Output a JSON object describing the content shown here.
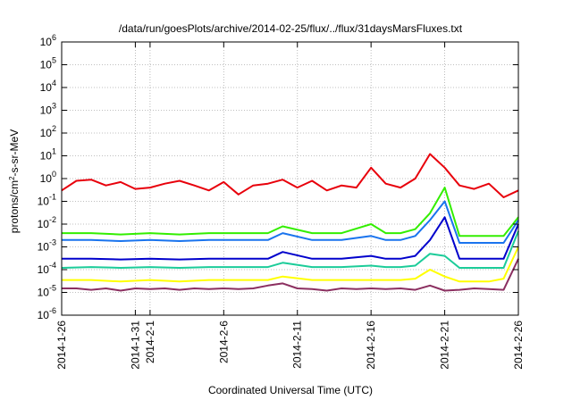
{
  "chart_data": {
    "type": "line",
    "title": "/data/run/goesPlots/archive/2014-02-25/flux/../flux/31daysMarsFluxes.txt",
    "xlabel": "Coordinated Universal Time (UTC)",
    "ylabel": "protons/cm2-s-sr-MeV",
    "ylabel_parts": {
      "pre": "protons/cm",
      "sup": "2",
      "post": "-s-sr-MeV"
    },
    "y_scale": "log",
    "ylim": [
      1e-06,
      1000000.0
    ],
    "y_ticks": [
      {
        "value": 1e-06,
        "base": "10",
        "exp": "-6"
      },
      {
        "value": 1e-05,
        "base": "10",
        "exp": "-5"
      },
      {
        "value": 0.0001,
        "base": "10",
        "exp": "-4"
      },
      {
        "value": 0.001,
        "base": "10",
        "exp": "-3"
      },
      {
        "value": 0.01,
        "base": "10",
        "exp": "-2"
      },
      {
        "value": 0.1,
        "base": "10",
        "exp": "-1"
      },
      {
        "value": 1.0,
        "base": "10",
        "exp": "0"
      },
      {
        "value": 10.0,
        "base": "10",
        "exp": "1"
      },
      {
        "value": 100.0,
        "base": "10",
        "exp": "2"
      },
      {
        "value": 1000.0,
        "base": "10",
        "exp": "3"
      },
      {
        "value": 10000.0,
        "base": "10",
        "exp": "4"
      },
      {
        "value": 100000.0,
        "base": "10",
        "exp": "5"
      },
      {
        "value": 1000000.0,
        "base": "10",
        "exp": "6"
      }
    ],
    "xlim": [
      "2014-01-26",
      "2014-02-26"
    ],
    "x_ticks": [
      {
        "value": "2014-01-26",
        "label": "2014-1-26"
      },
      {
        "value": "2014-01-31",
        "label": "2014-1-31"
      },
      {
        "value": "2014-02-01",
        "label": "2014-2-1"
      },
      {
        "value": "2014-02-06",
        "label": "2014-2-6"
      },
      {
        "value": "2014-02-11",
        "label": "2014-2-11"
      },
      {
        "value": "2014-02-16",
        "label": "2014-2-16"
      },
      {
        "value": "2014-02-21",
        "label": "2014-2-21"
      },
      {
        "value": "2014-02-26",
        "label": "2014-2-26"
      }
    ],
    "grid": true,
    "series": [
      {
        "color": "#e8000b",
        "x": [
          "2014-01-26",
          "2014-01-27",
          "2014-01-28",
          "2014-01-29",
          "2014-01-30",
          "2014-01-31",
          "2014-02-01",
          "2014-02-02",
          "2014-02-03",
          "2014-02-04",
          "2014-02-05",
          "2014-02-06",
          "2014-02-07",
          "2014-02-08",
          "2014-02-09",
          "2014-02-10",
          "2014-02-11",
          "2014-02-12",
          "2014-02-13",
          "2014-02-14",
          "2014-02-15",
          "2014-02-16",
          "2014-02-17",
          "2014-02-18",
          "2014-02-19",
          "2014-02-20",
          "2014-02-21",
          "2014-02-22",
          "2014-02-23",
          "2014-02-24",
          "2014-02-25",
          "2014-02-26"
        ],
        "values": [
          0.3,
          0.8,
          0.9,
          0.5,
          0.7,
          0.35,
          0.4,
          0.6,
          0.8,
          0.5,
          0.3,
          0.7,
          0.2,
          0.5,
          0.6,
          0.9,
          0.4,
          0.8,
          0.3,
          0.5,
          0.4,
          3.0,
          0.6,
          0.4,
          1.0,
          12.0,
          3.0,
          0.5,
          0.35,
          0.6,
          0.15,
          0.3
        ]
      },
      {
        "color": "#33ee00",
        "x": [
          "2014-01-26",
          "2014-01-28",
          "2014-01-30",
          "2014-02-01",
          "2014-02-03",
          "2014-02-05",
          "2014-02-07",
          "2014-02-09",
          "2014-02-10",
          "2014-02-12",
          "2014-02-14",
          "2014-02-16",
          "2014-02-17",
          "2014-02-18",
          "2014-02-19",
          "2014-02-20",
          "2014-02-21",
          "2014-02-22",
          "2014-02-23",
          "2014-02-24",
          "2014-02-25",
          "2014-02-26"
        ],
        "values": [
          0.004,
          0.004,
          0.0035,
          0.004,
          0.0035,
          0.004,
          0.004,
          0.004,
          0.008,
          0.004,
          0.004,
          0.01,
          0.004,
          0.004,
          0.006,
          0.03,
          0.4,
          0.003,
          0.003,
          0.003,
          0.003,
          0.02
        ]
      },
      {
        "color": "#1a74ee",
        "x": [
          "2014-01-26",
          "2014-01-28",
          "2014-01-30",
          "2014-02-01",
          "2014-02-03",
          "2014-02-05",
          "2014-02-07",
          "2014-02-09",
          "2014-02-10",
          "2014-02-12",
          "2014-02-14",
          "2014-02-16",
          "2014-02-17",
          "2014-02-18",
          "2014-02-19",
          "2014-02-20",
          "2014-02-21",
          "2014-02-22",
          "2014-02-23",
          "2014-02-24",
          "2014-02-25",
          "2014-02-26"
        ],
        "values": [
          0.002,
          0.002,
          0.0018,
          0.002,
          0.0018,
          0.002,
          0.002,
          0.002,
          0.004,
          0.002,
          0.002,
          0.003,
          0.002,
          0.002,
          0.003,
          0.015,
          0.1,
          0.0015,
          0.0015,
          0.0015,
          0.0015,
          0.015
        ]
      },
      {
        "color": "#0000cc",
        "x": [
          "2014-01-26",
          "2014-01-28",
          "2014-01-30",
          "2014-02-01",
          "2014-02-03",
          "2014-02-05",
          "2014-02-07",
          "2014-02-09",
          "2014-02-10",
          "2014-02-12",
          "2014-02-14",
          "2014-02-16",
          "2014-02-17",
          "2014-02-18",
          "2014-02-19",
          "2014-02-20",
          "2014-02-21",
          "2014-02-22",
          "2014-02-23",
          "2014-02-24",
          "2014-02-25",
          "2014-02-26"
        ],
        "values": [
          0.0003,
          0.0003,
          0.00028,
          0.0003,
          0.00028,
          0.0003,
          0.0003,
          0.0003,
          0.0006,
          0.0003,
          0.0003,
          0.0004,
          0.0003,
          0.0003,
          0.0004,
          0.002,
          0.02,
          0.0003,
          0.0003,
          0.0003,
          0.0003,
          0.01
        ]
      },
      {
        "color": "#1ccc99",
        "x": [
          "2014-01-26",
          "2014-01-28",
          "2014-01-30",
          "2014-02-01",
          "2014-02-03",
          "2014-02-05",
          "2014-02-07",
          "2014-02-09",
          "2014-02-10",
          "2014-02-12",
          "2014-02-14",
          "2014-02-16",
          "2014-02-17",
          "2014-02-18",
          "2014-02-19",
          "2014-02-20",
          "2014-02-21",
          "2014-02-22",
          "2014-02-23",
          "2014-02-24",
          "2014-02-25",
          "2014-02-26"
        ],
        "values": [
          0.00012,
          0.00013,
          0.00012,
          0.00013,
          0.00012,
          0.00013,
          0.00013,
          0.00013,
          0.0002,
          0.00013,
          0.00013,
          0.00015,
          0.00013,
          0.00013,
          0.00015,
          0.0005,
          0.0004,
          0.00012,
          0.00012,
          0.00012,
          0.00012,
          0.005
        ]
      },
      {
        "color": "#ffff00",
        "x": [
          "2014-01-26",
          "2014-01-28",
          "2014-01-30",
          "2014-02-01",
          "2014-02-03",
          "2014-02-05",
          "2014-02-07",
          "2014-02-09",
          "2014-02-10",
          "2014-02-12",
          "2014-02-14",
          "2014-02-16",
          "2014-02-17",
          "2014-02-18",
          "2014-02-19",
          "2014-02-20",
          "2014-02-21",
          "2014-02-22",
          "2014-02-23",
          "2014-02-24",
          "2014-02-25",
          "2014-02-26"
        ],
        "values": [
          3.5e-05,
          3.5e-05,
          3e-05,
          3.5e-05,
          3e-05,
          3.5e-05,
          3.5e-05,
          3.5e-05,
          5e-05,
          3.5e-05,
          3.5e-05,
          3.5e-05,
          3.5e-05,
          3.5e-05,
          4e-05,
          0.0001,
          5e-05,
          3e-05,
          3e-05,
          3e-05,
          4e-05,
          0.001
        ]
      },
      {
        "color": "#8b2f60",
        "x": [
          "2014-01-26",
          "2014-01-27",
          "2014-01-28",
          "2014-01-29",
          "2014-01-30",
          "2014-01-31",
          "2014-02-01",
          "2014-02-02",
          "2014-02-03",
          "2014-02-04",
          "2014-02-05",
          "2014-02-06",
          "2014-02-07",
          "2014-02-08",
          "2014-02-09",
          "2014-02-10",
          "2014-02-11",
          "2014-02-12",
          "2014-02-13",
          "2014-02-14",
          "2014-02-15",
          "2014-02-16",
          "2014-02-17",
          "2014-02-18",
          "2014-02-19",
          "2014-02-20",
          "2014-02-21",
          "2014-02-22",
          "2014-02-23",
          "2014-02-24",
          "2014-02-25",
          "2014-02-26"
        ],
        "values": [
          1.5e-05,
          1.5e-05,
          1.3e-05,
          1.5e-05,
          1.2e-05,
          1.5e-05,
          1.4e-05,
          1.5e-05,
          1.3e-05,
          1.5e-05,
          1.4e-05,
          1.5e-05,
          1.4e-05,
          1.5e-05,
          2e-05,
          2.5e-05,
          1.5e-05,
          1.4e-05,
          1.2e-05,
          1.5e-05,
          1.4e-05,
          1.5e-05,
          1.4e-05,
          1.5e-05,
          1.3e-05,
          2e-05,
          1.2e-05,
          1.3e-05,
          1.5e-05,
          1.4e-05,
          1.3e-05,
          0.0003
        ]
      }
    ]
  }
}
